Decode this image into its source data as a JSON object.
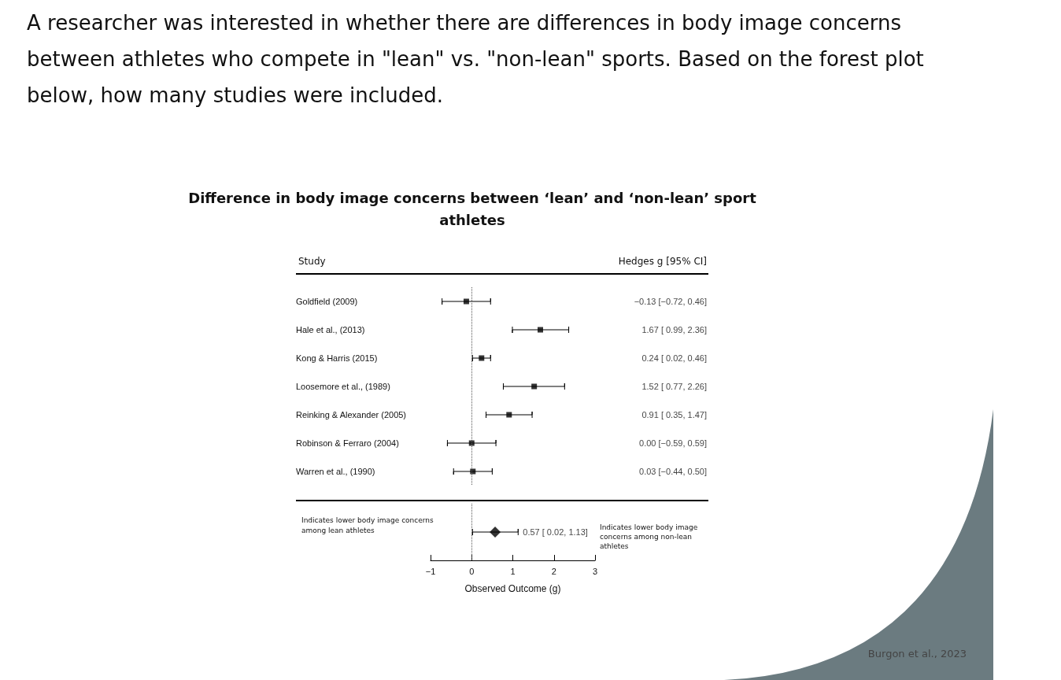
{
  "chart_data": [
    {
      "type": "scatter",
      "orientation": "horizontal",
      "title": "Difference in body image concerns between ‘lean’ and ‘non-lean’ sport athletes",
      "annotations": [
        "A researcher was interested in whether there are differences in body image concerns between athletes who compete in \"lean\" vs. \"non-lean\" sports.  Based on the forest plot below, how many studies were included.",
        "Study",
        "Hedges g [95% CI]"
      ],
      "categories": [
        "Goldfield (2009)",
        "Hale et al., (2013)",
        "Kong & Harris (2015)",
        "Loosemore et al., (1989)",
        "Reinking & Alexander (2005)",
        "Robinson & Ferraro (2004)",
        "Warren et al., (1990)"
      ],
      "series": [
        {
          "marker": "square",
          "color": "#000000",
          "values": [
            -0.13,
            1.67,
            0.24,
            1.52,
            0.91,
            0.0,
            0.03
          ],
          "errors": [
            [
              -0.72,
              0.46
            ],
            [
              0.99,
              2.36
            ],
            [
              0.02,
              0.46
            ],
            [
              0.77,
              2.26
            ],
            [
              0.35,
              1.47
            ],
            [
              -0.59,
              0.59
            ],
            [
              -0.44,
              0.5
            ]
          ],
          "value_labels": [
            "−0.13 [−0.72, 0.46]",
            "1.67 [ 0.99, 2.36]",
            "0.24 [ 0.02, 0.46]",
            "1.52 [ 0.77, 2.26]",
            "0.91 [ 0.35, 1.47]",
            "0.00 [−0.59, 0.59]",
            "0.03 [−0.44, 0.50]"
          ]
        }
      ],
      "xlim": [
        -1,
        3
      ],
      "tick_labels": "y",
      "ref_lines": [
        {
          "axis": "x",
          "value": 0,
          "line_style": "dotted",
          "color": "#555555"
        }
      ],
      "grid": false
    },
    {
      "type": "scatter",
      "orientation": "horizontal",
      "xlabel": "Observed Outcome (g)",
      "annotations": [
        "Indicates lower body image concerns among lean athletes",
        "Indicates lower body image concerns among non-lean athletes",
        "Burgon et al., 2023"
      ],
      "categories": [
        null
      ],
      "series": [
        {
          "marker": "diamond",
          "color": "#000000",
          "values": [
            0.57
          ],
          "errors": [
            [
              0.02,
              1.13
            ]
          ],
          "value_labels": [
            "0.57 [ 0.02, 1.13]"
          ]
        }
      ],
      "xlim": [
        -1,
        3
      ],
      "xticks": [
        -1,
        0,
        1,
        2,
        3
      ],
      "ref_lines": [
        {
          "axis": "x",
          "value": 0,
          "line_style": "dotted",
          "color": "#555555"
        }
      ],
      "grid": false
    }
  ]
}
